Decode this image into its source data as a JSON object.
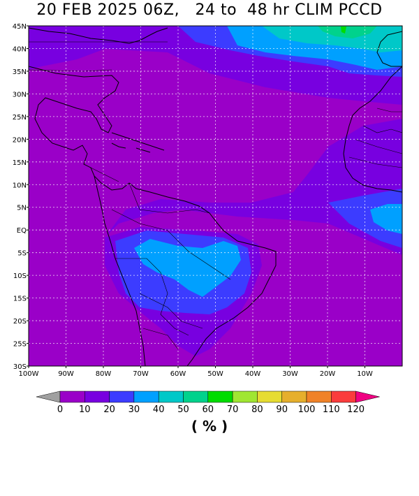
{
  "title": "20 FEB 2025 06Z,   24 to  48 hr CLIM PCCD",
  "lat_labels": [
    "45N",
    "40N",
    "35N",
    "30N",
    "25N",
    "20N",
    "15N",
    "10N",
    "5N",
    "EQ",
    "5S",
    "10S",
    "15S",
    "20S",
    "25S",
    "30S"
  ],
  "lon_labels": [
    "100W",
    "90W",
    "80W",
    "70W",
    "60W",
    "50W",
    "40W",
    "30W",
    "20W",
    "10W"
  ],
  "colorbar": {
    "labels": [
      "0",
      "10",
      "20",
      "30",
      "40",
      "50",
      "60",
      "70",
      "80",
      "90",
      "100",
      "110",
      "120"
    ],
    "colors": [
      "#9a00c8",
      "#7800e0",
      "#3c3cff",
      "#00a0ff",
      "#00c8c8",
      "#00d28c",
      "#00dc00",
      "#a0e632",
      "#e6dc32",
      "#e6af2d",
      "#f08228",
      "#fa3c3c",
      "#f00082"
    ],
    "under_color": "#a0a0a0",
    "over_color": "#f00082",
    "unit": "( % )"
  },
  "field_colors": {
    "base": "#9a00c8",
    "level_10_20": "#7800e0",
    "level_20_30": "#3c3cff",
    "level_30_40": "#00a0ff",
    "level_40_50": "#00c8c8",
    "level_50_60": "#00d28c",
    "level_60_70": "#00dc00"
  }
}
